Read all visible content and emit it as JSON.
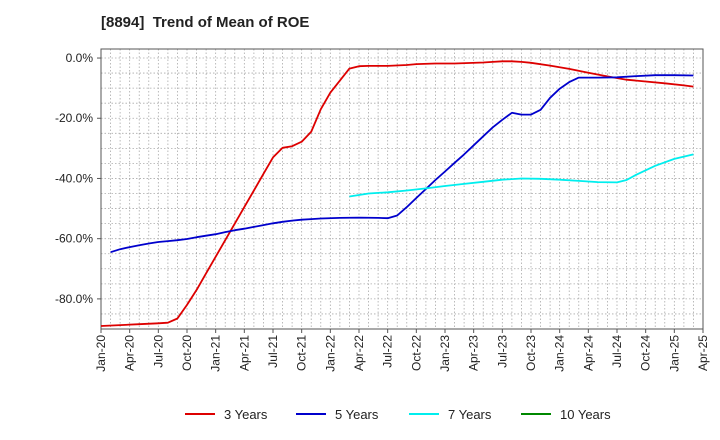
{
  "chart_data": {
    "type": "line",
    "title": "[8894]  Trend of Mean of ROE",
    "xlabel": "",
    "ylabel": "",
    "x_tick_labels": [
      "Jan-20",
      "Apr-20",
      "Jul-20",
      "Oct-20",
      "Jan-21",
      "Apr-21",
      "Jul-21",
      "Oct-21",
      "Jan-22",
      "Apr-22",
      "Jul-22",
      "Oct-22",
      "Jan-23",
      "Apr-23",
      "Jul-23",
      "Oct-23",
      "Jan-24",
      "Apr-24",
      "Jul-24",
      "Oct-24",
      "Jan-25",
      "Apr-25"
    ],
    "y_tick_labels": [
      "0.0%",
      "-20.0%",
      "-40.0%",
      "-60.0%",
      "-80.0%"
    ],
    "y_ticks": [
      0,
      -20,
      -40,
      -60,
      -80
    ],
    "ylim": [
      -90,
      0
    ],
    "x_range_months": [
      0,
      63
    ],
    "grid": true,
    "legend_position": "bottom",
    "series": [
      {
        "name": "3 Years",
        "color": "#dd0000",
        "points": [
          [
            0,
            -89.0
          ],
          [
            2,
            -88.7
          ],
          [
            4,
            -88.4
          ],
          [
            6,
            -88.1
          ],
          [
            7,
            -87.9
          ],
          [
            8,
            -86.5
          ],
          [
            9,
            -82.0
          ],
          [
            10,
            -77.0
          ],
          [
            11,
            -71.5
          ],
          [
            12,
            -66.0
          ],
          [
            13,
            -60.5
          ],
          [
            14,
            -55.0
          ],
          [
            15,
            -49.5
          ],
          [
            16,
            -44.0
          ],
          [
            17,
            -38.5
          ],
          [
            18,
            -33.0
          ],
          [
            19,
            -29.8
          ],
          [
            20,
            -29.3
          ],
          [
            21,
            -27.8
          ],
          [
            22,
            -24.5
          ],
          [
            23,
            -17.0
          ],
          [
            24,
            -11.5
          ],
          [
            25,
            -7.5
          ],
          [
            26,
            -3.5
          ],
          [
            27,
            -2.7
          ],
          [
            28,
            -2.6
          ],
          [
            30,
            -2.6
          ],
          [
            32,
            -2.3
          ],
          [
            33,
            -2.0
          ],
          [
            35,
            -1.8
          ],
          [
            37,
            -1.8
          ],
          [
            40,
            -1.5
          ],
          [
            41,
            -1.3
          ],
          [
            42,
            -1.1
          ],
          [
            43,
            -1.1
          ],
          [
            44,
            -1.3
          ],
          [
            45,
            -1.6
          ],
          [
            47,
            -2.5
          ],
          [
            49,
            -3.6
          ],
          [
            51,
            -4.9
          ],
          [
            53,
            -6.1
          ],
          [
            55,
            -7.2
          ],
          [
            57,
            -7.8
          ],
          [
            59,
            -8.4
          ],
          [
            61,
            -9.1
          ],
          [
            62,
            -9.5
          ]
        ]
      },
      {
        "name": "5 Years",
        "color": "#0000cc",
        "points": [
          [
            1,
            -64.5
          ],
          [
            2,
            -63.5
          ],
          [
            3,
            -62.8
          ],
          [
            4,
            -62.2
          ],
          [
            5,
            -61.6
          ],
          [
            6,
            -61.1
          ],
          [
            7,
            -60.8
          ],
          [
            8,
            -60.5
          ],
          [
            9,
            -60.1
          ],
          [
            10,
            -59.5
          ],
          [
            11,
            -59.0
          ],
          [
            12,
            -58.5
          ],
          [
            13,
            -57.8
          ],
          [
            14,
            -57.2
          ],
          [
            15,
            -56.7
          ],
          [
            16,
            -56.1
          ],
          [
            17,
            -55.5
          ],
          [
            18,
            -54.9
          ],
          [
            19,
            -54.4
          ],
          [
            20,
            -54.0
          ],
          [
            21,
            -53.7
          ],
          [
            22,
            -53.5
          ],
          [
            23,
            -53.3
          ],
          [
            25,
            -53.1
          ],
          [
            27,
            -53.0
          ],
          [
            29,
            -53.1
          ],
          [
            30,
            -53.2
          ],
          [
            31,
            -52.3
          ],
          [
            32,
            -49.5
          ],
          [
            33,
            -46.5
          ],
          [
            34,
            -43.5
          ],
          [
            35,
            -40.5
          ],
          [
            36,
            -37.7
          ],
          [
            37,
            -34.8
          ],
          [
            38,
            -32.0
          ],
          [
            39,
            -29.0
          ],
          [
            40,
            -26.0
          ],
          [
            41,
            -23.0
          ],
          [
            42,
            -20.5
          ],
          [
            43,
            -18.2
          ],
          [
            44,
            -18.8
          ],
          [
            45,
            -18.8
          ],
          [
            46,
            -17.2
          ],
          [
            47,
            -13.2
          ],
          [
            48,
            -10.2
          ],
          [
            49,
            -8.0
          ],
          [
            50,
            -6.5
          ],
          [
            52,
            -6.5
          ],
          [
            54,
            -6.4
          ],
          [
            56,
            -6.0
          ],
          [
            58,
            -5.7
          ],
          [
            60,
            -5.7
          ],
          [
            62,
            -5.8
          ]
        ]
      },
      {
        "name": "7 Years",
        "color": "#00eeee",
        "points": [
          [
            26,
            -46.0
          ],
          [
            27,
            -45.5
          ],
          [
            28,
            -45.0
          ],
          [
            30,
            -44.6
          ],
          [
            32,
            -44.0
          ],
          [
            34,
            -43.3
          ],
          [
            36,
            -42.5
          ],
          [
            38,
            -41.8
          ],
          [
            40,
            -41.1
          ],
          [
            42,
            -40.4
          ],
          [
            44,
            -40.0
          ],
          [
            46,
            -40.1
          ],
          [
            48,
            -40.4
          ],
          [
            50,
            -40.8
          ],
          [
            52,
            -41.2
          ],
          [
            54,
            -41.3
          ],
          [
            55,
            -40.5
          ],
          [
            56,
            -38.8
          ],
          [
            58,
            -35.8
          ],
          [
            60,
            -33.5
          ],
          [
            62,
            -32.0
          ]
        ]
      },
      {
        "name": "10 Years",
        "color": "#008800",
        "points": []
      }
    ]
  }
}
